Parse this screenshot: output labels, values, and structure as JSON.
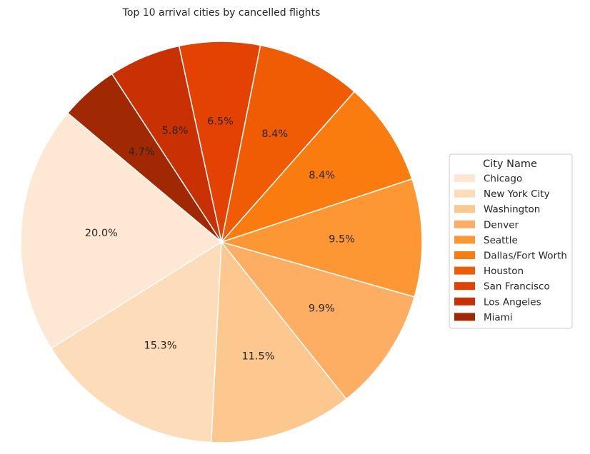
{
  "chart_data": {
    "type": "pie",
    "title": "Top 10 arrival cities by cancelled flights",
    "legend_title": "City Name",
    "legend_position": "right",
    "categories": [
      "Chicago",
      "New York City",
      "Washington",
      "Denver",
      "Seattle",
      "Dallas/Fort Worth",
      "Houston",
      "San Francisco",
      "Los Angeles",
      "Miami"
    ],
    "values": [
      20.0,
      15.3,
      11.5,
      9.9,
      9.5,
      8.4,
      8.4,
      6.5,
      5.8,
      4.7
    ],
    "labels": [
      "20.0%",
      "15.3%",
      "11.5%",
      "9.9%",
      "9.5%",
      "8.4%",
      "8.4%",
      "6.5%",
      "5.8%",
      "4.7%"
    ],
    "colors": [
      "#fee8d4",
      "#fddcb9",
      "#fdc890",
      "#fdae63",
      "#fd9734",
      "#fa7c0e",
      "#f05c03",
      "#e34203",
      "#c93003",
      "#a02903"
    ],
    "start_angle_deg": 140,
    "direction": "counterclockwise"
  }
}
